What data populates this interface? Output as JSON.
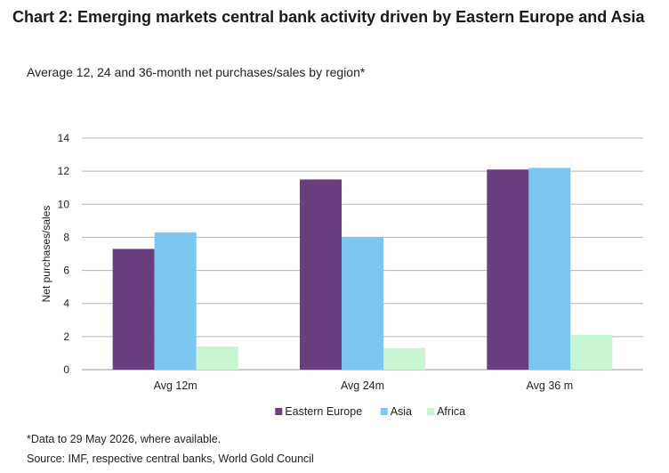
{
  "title": "Chart 2: Emerging markets central bank activity driven by Eastern Europe and Asia",
  "subtitle": "Average 12, 24 and 36-month net purchases/sales by region*",
  "footnote": "*Data to 29 May 2026, where available.",
  "source": "Source: IMF, respective central banks, World Gold Council",
  "colors": {
    "eastern_europe": "#6b3f7f",
    "asia": "#7cc6f2",
    "africa": "#c8f5d2",
    "grid": "#b5b5b5"
  },
  "chart_data": {
    "type": "bar",
    "categories": [
      "Avg 12m",
      "Avg 24m",
      "Avg 36 m"
    ],
    "series": [
      {
        "name": "Eastern Europe",
        "values": [
          7.3,
          11.5,
          12.1
        ]
      },
      {
        "name": "Asia",
        "values": [
          8.3,
          8.0,
          12.2
        ]
      },
      {
        "name": "Africa",
        "values": [
          1.4,
          1.3,
          2.1
        ]
      }
    ],
    "xlabel": "",
    "ylabel": "Net purchases/sales",
    "ylim": [
      0,
      14
    ],
    "yticks": [
      0,
      2,
      4,
      6,
      8,
      10,
      12,
      14
    ],
    "grid": true,
    "legend": "bottom"
  }
}
